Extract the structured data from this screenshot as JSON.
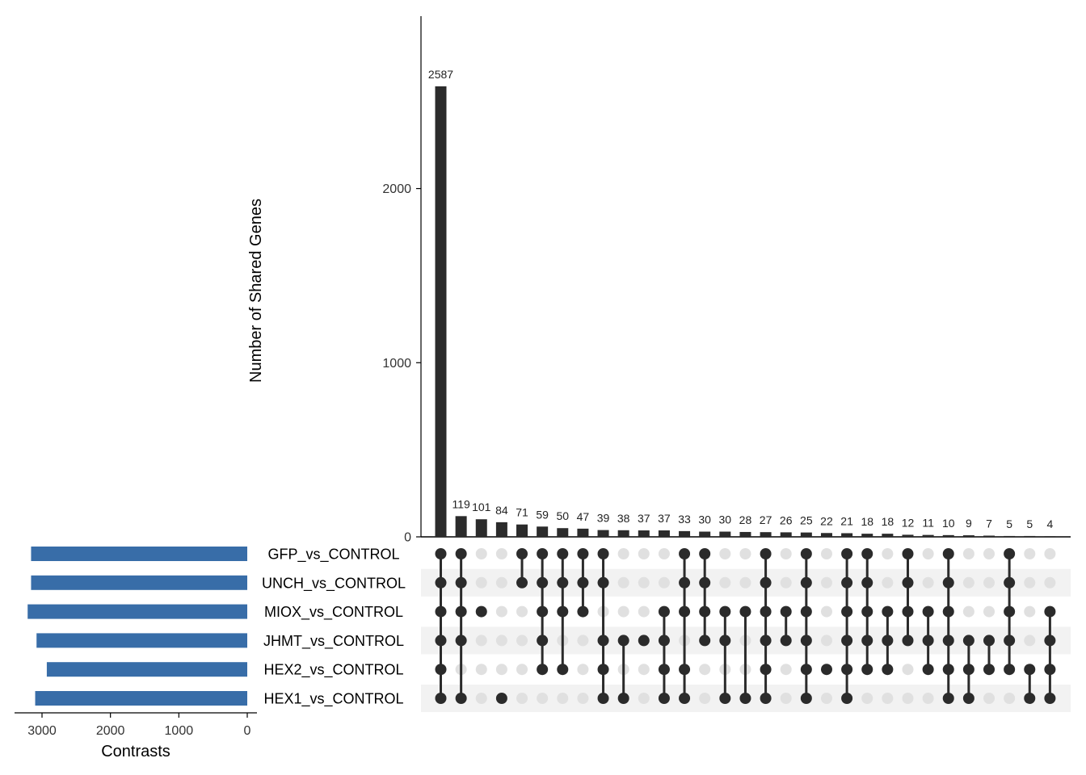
{
  "chart_data": {
    "type": "upset",
    "sets": [
      "GFP_vs_CONTROL",
      "UNCH_vs_CONTROL",
      "MIOX_vs_CONTROL",
      "JHMT_vs_CONTROL",
      "HEX2_vs_CONTROL",
      "HEX1_vs_CONTROL"
    ],
    "set_sizes": [
      3160,
      3160,
      3210,
      3080,
      2930,
      3100
    ],
    "set_size_axis": {
      "title": "Contrasts",
      "ticks": [
        3000,
        2000,
        1000,
        0
      ],
      "range": [
        0,
        3450
      ]
    },
    "intersection_axis": {
      "title": "Number of Shared Genes",
      "ticks": [
        0,
        1000,
        2000
      ],
      "range": [
        0,
        2990
      ]
    },
    "intersection_sizes": [
      2587,
      119,
      101,
      84,
      71,
      59,
      50,
      47,
      39,
      38,
      37,
      37,
      33,
      30,
      30,
      28,
      27,
      26,
      25,
      22,
      21,
      18,
      18,
      12,
      11,
      10,
      9,
      7,
      5,
      5,
      4
    ],
    "intersection_labels": [
      "2587",
      "119",
      "101",
      "84",
      "71",
      "59",
      "50",
      "47",
      "39",
      "38",
      "37",
      "37",
      "33",
      "30",
      "30",
      "28",
      "27",
      "26",
      "25",
      "22",
      "21",
      "18",
      "18",
      "12",
      "11",
      "10",
      "9",
      "7",
      "5",
      "5",
      "4"
    ],
    "intersection_sets": [
      [
        "GFP_vs_CONTROL",
        "UNCH_vs_CONTROL",
        "MIOX_vs_CONTROL",
        "JHMT_vs_CONTROL",
        "HEX2_vs_CONTROL",
        "HEX1_vs_CONTROL"
      ],
      [
        "GFP_vs_CONTROL",
        "UNCH_vs_CONTROL",
        "MIOX_vs_CONTROL",
        "JHMT_vs_CONTROL",
        "HEX1_vs_CONTROL"
      ],
      [
        "MIOX_vs_CONTROL"
      ],
      [
        "HEX1_vs_CONTROL"
      ],
      [
        "GFP_vs_CONTROL",
        "UNCH_vs_CONTROL"
      ],
      [
        "GFP_vs_CONTROL",
        "UNCH_vs_CONTROL",
        "MIOX_vs_CONTROL",
        "JHMT_vs_CONTROL",
        "HEX2_vs_CONTROL"
      ],
      [
        "GFP_vs_CONTROL",
        "UNCH_vs_CONTROL",
        "MIOX_vs_CONTROL",
        "HEX2_vs_CONTROL"
      ],
      [
        "GFP_vs_CONTROL",
        "UNCH_vs_CONTROL",
        "MIOX_vs_CONTROL"
      ],
      [
        "GFP_vs_CONTROL",
        "UNCH_vs_CONTROL",
        "JHMT_vs_CONTROL",
        "HEX2_vs_CONTROL",
        "HEX1_vs_CONTROL"
      ],
      [
        "JHMT_vs_CONTROL",
        "HEX1_vs_CONTROL"
      ],
      [
        "JHMT_vs_CONTROL"
      ],
      [
        "MIOX_vs_CONTROL",
        "JHMT_vs_CONTROL",
        "HEX2_vs_CONTROL",
        "HEX1_vs_CONTROL"
      ],
      [
        "GFP_vs_CONTROL",
        "UNCH_vs_CONTROL",
        "MIOX_vs_CONTROL",
        "HEX2_vs_CONTROL",
        "HEX1_vs_CONTROL"
      ],
      [
        "GFP_vs_CONTROL",
        "UNCH_vs_CONTROL",
        "MIOX_vs_CONTROL",
        "JHMT_vs_CONTROL"
      ],
      [
        "MIOX_vs_CONTROL",
        "JHMT_vs_CONTROL",
        "HEX1_vs_CONTROL"
      ],
      [
        "MIOX_vs_CONTROL",
        "HEX1_vs_CONTROL"
      ],
      [
        "GFP_vs_CONTROL",
        "UNCH_vs_CONTROL",
        "MIOX_vs_CONTROL",
        "JHMT_vs_CONTROL",
        "HEX2_vs_CONTROL",
        "HEX1_vs_CONTROL"
      ],
      [
        "MIOX_vs_CONTROL",
        "JHMT_vs_CONTROL"
      ],
      [
        "GFP_vs_CONTROL",
        "UNCH_vs_CONTROL",
        "MIOX_vs_CONTROL",
        "JHMT_vs_CONTROL",
        "HEX2_vs_CONTROL",
        "HEX1_vs_CONTROL"
      ],
      [
        "HEX2_vs_CONTROL"
      ],
      [
        "GFP_vs_CONTROL",
        "UNCH_vs_CONTROL",
        "MIOX_vs_CONTROL",
        "JHMT_vs_CONTROL",
        "HEX2_vs_CONTROL",
        "HEX1_vs_CONTROL"
      ],
      [
        "GFP_vs_CONTROL",
        "UNCH_vs_CONTROL",
        "MIOX_vs_CONTROL",
        "JHMT_vs_CONTROL",
        "HEX2_vs_CONTROL"
      ],
      [
        "MIOX_vs_CONTROL",
        "JHMT_vs_CONTROL",
        "HEX2_vs_CONTROL"
      ],
      [
        "GFP_vs_CONTROL",
        "UNCH_vs_CONTROL",
        "MIOX_vs_CONTROL",
        "JHMT_vs_CONTROL"
      ],
      [
        "MIOX_vs_CONTROL",
        "JHMT_vs_CONTROL",
        "HEX2_vs_CONTROL"
      ],
      [
        "GFP_vs_CONTROL",
        "UNCH_vs_CONTROL",
        "MIOX_vs_CONTROL",
        "JHMT_vs_CONTROL",
        "HEX2_vs_CONTROL",
        "HEX1_vs_CONTROL"
      ],
      [
        "JHMT_vs_CONTROL",
        "HEX2_vs_CONTROL",
        "HEX1_vs_CONTROL"
      ],
      [
        "JHMT_vs_CONTROL",
        "HEX2_vs_CONTROL"
      ],
      [
        "GFP_vs_CONTROL",
        "UNCH_vs_CONTROL",
        "MIOX_vs_CONTROL",
        "JHMT_vs_CONTROL",
        "HEX2_vs_CONTROL"
      ],
      [
        "HEX2_vs_CONTROL",
        "HEX1_vs_CONTROL"
      ],
      [
        "MIOX_vs_CONTROL",
        "JHMT_vs_CONTROL",
        "HEX2_vs_CONTROL",
        "HEX1_vs_CONTROL"
      ]
    ],
    "colors": {
      "intersection_bar": "#2b2b2b",
      "set_bar": "#386da8",
      "dot_active": "#2b2b2b",
      "dot_inactive": "#e0e0e0",
      "row_stripe": "#f2f2f2",
      "axis": "#000000"
    },
    "grid": false
  }
}
